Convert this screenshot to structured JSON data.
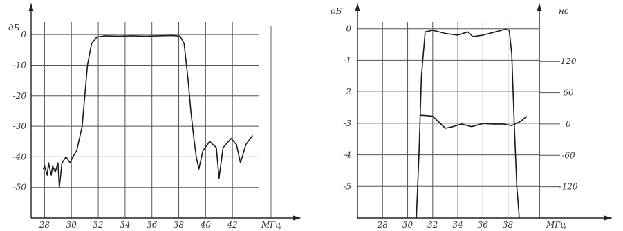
{
  "header_fragment": "",
  "chart_data": [
    {
      "type": "line",
      "ylabel": "дБ",
      "xlabel": "МГц",
      "xlim": [
        27,
        44
      ],
      "ylim": [
        -60,
        5
      ],
      "xticks": [
        "28",
        "30",
        "32",
        "34",
        "36",
        "38",
        "40",
        "42"
      ],
      "yticks": [
        "0",
        "-10",
        "-20",
        "-30",
        "-40",
        "-50"
      ],
      "grid": true,
      "series": [
        {
          "values": [
            [
              27.9,
              -44
            ],
            [
              28.0,
              -43
            ],
            [
              28.2,
              -46
            ],
            [
              28.3,
              -42
            ],
            [
              28.5,
              -46
            ],
            [
              28.6,
              -43
            ],
            [
              28.8,
              -45
            ],
            [
              29.0,
              -42
            ],
            [
              29.1,
              -50
            ],
            [
              29.3,
              -42
            ],
            [
              29.6,
              -40
            ],
            [
              29.9,
              -42
            ],
            [
              30.1,
              -40
            ],
            [
              30.4,
              -38
            ],
            [
              30.8,
              -30
            ],
            [
              31.0,
              -20
            ],
            [
              31.2,
              -10
            ],
            [
              31.5,
              -3
            ],
            [
              31.9,
              -0.8
            ],
            [
              32.5,
              -0.4
            ],
            [
              33.5,
              -0.5
            ],
            [
              34.5,
              -0.4
            ],
            [
              35.5,
              -0.5
            ],
            [
              36.5,
              -0.4
            ],
            [
              37.5,
              -0.3
            ],
            [
              38.1,
              -0.5
            ],
            [
              38.4,
              -3
            ],
            [
              38.7,
              -15
            ],
            [
              38.9,
              -25
            ],
            [
              39.1,
              -33
            ],
            [
              39.3,
              -40
            ],
            [
              39.5,
              -44
            ],
            [
              39.8,
              -38
            ],
            [
              40.3,
              -35
            ],
            [
              40.8,
              -37
            ],
            [
              41.0,
              -47
            ],
            [
              41.3,
              -37
            ],
            [
              41.9,
              -34
            ],
            [
              42.3,
              -36
            ],
            [
              42.6,
              -42
            ],
            [
              43.0,
              -36
            ],
            [
              43.5,
              -33
            ]
          ]
        }
      ]
    },
    {
      "type": "line",
      "ylabel": "дБ",
      "y2label": "нс",
      "xlabel": "МГц",
      "xlim": [
        26,
        40.5
      ],
      "ylim": [
        -6,
        0.3
      ],
      "y2lim": [
        -180,
        201
      ],
      "xticks": [
        "28",
        "30",
        "32",
        "34",
        "36",
        "38"
      ],
      "yticks": [
        "0",
        "-1",
        "-2",
        "-3",
        "-4",
        "-5"
      ],
      "y2ticks": [
        "120",
        "60",
        "0",
        "-60",
        "-120"
      ],
      "grid": true,
      "series": [
        {
          "axis": "left",
          "values": [
            [
              30.7,
              -6
            ],
            [
              30.9,
              -4
            ],
            [
              31.1,
              -1.5
            ],
            [
              31.4,
              -0.1
            ],
            [
              32.0,
              -0.05
            ],
            [
              33.0,
              -0.15
            ],
            [
              34.0,
              -0.2
            ],
            [
              34.8,
              -0.1
            ],
            [
              35.2,
              -0.25
            ],
            [
              36.0,
              -0.2
            ],
            [
              37.0,
              -0.1
            ],
            [
              37.8,
              -0.02
            ],
            [
              38.1,
              -0.05
            ],
            [
              38.3,
              -0.8
            ],
            [
              38.5,
              -3
            ],
            [
              38.7,
              -5
            ],
            [
              38.9,
              -6
            ]
          ]
        },
        {
          "axis": "right",
          "values": [
            [
              31.0,
              17
            ],
            [
              32.0,
              15
            ],
            [
              33.0,
              -8
            ],
            [
              33.6,
              -5
            ],
            [
              34.3,
              0
            ],
            [
              35.1,
              -5
            ],
            [
              36.0,
              1
            ],
            [
              36.8,
              0
            ],
            [
              37.6,
              0
            ],
            [
              38.3,
              -3
            ],
            [
              39.0,
              5
            ],
            [
              39.5,
              15
            ]
          ]
        }
      ]
    }
  ]
}
